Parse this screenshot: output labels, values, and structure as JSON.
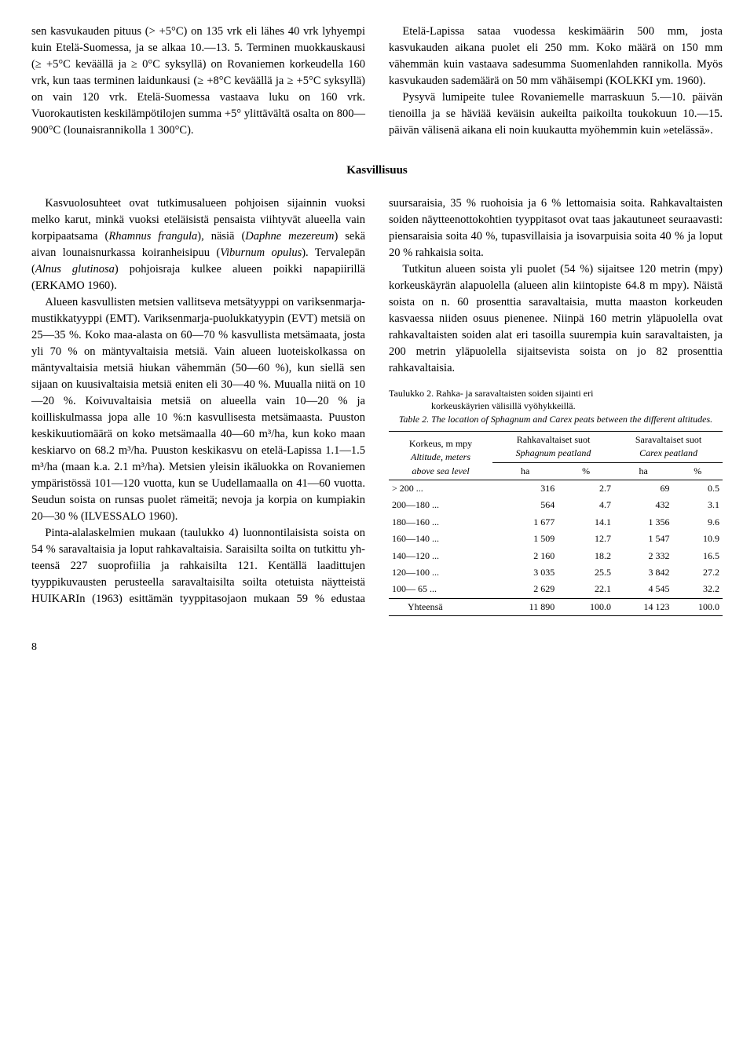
{
  "section1": {
    "col1_p1": "sen kasvukauden pituus (> +5°C) on 135 vrk eli lähes 40 vrk lyhyempi kuin Etelä-Suomessa, ja se alkaa 10.—13. 5. Terminen muokkauskausi (≥ +5°C keväällä ja ≥ 0°C syksyllä) on Rovaniemen korkeudella 160 vrk, kun taas terminen laidunkausi (≥ +8°C keväällä ja ≥ +5°C syksyllä) on vain 120 vrk. Etelä-Suomessa vastaava luku on 160 vrk. Vuorokautisten keskilämpötilojen summa +5° ylittävältä osalta on 800—900°C (lounaisrannikolla 1 300°C).",
    "col1_p2": "Etelä-Lapissa sataa vuodessa keskimäärin 500",
    "col2_p1": "mm, josta kasvukauden aikana puolet eli 250 mm. Koko määrä on 150 mm vähemmän kuin vastaava sadesumma Suomenlahden rannikolla. Myös kasvukauden sademäärä on 50 mm vähäisempi (KOLKKI ym. 1960).",
    "col2_p2": "Pysyvä lumipeite tulee Rovaniemelle marraskuun 5.—10. päivän tienoilla ja se häviää keväisin aukeilta paikoilta toukokuun 10.—15. päivän välisenä aikana eli noin kuukautta myöhemmin kuin »etelässä»."
  },
  "heading": "Kasvillisuus",
  "section2": {
    "p1a": "Kasvuolosuhteet ovat tutkimusalueen pohjoisen sijainnin vuoksi melko karut, minkä vuoksi eteläisistä pensaista viihtyvät alueella vain korpipaatsama (",
    "p1_i1": "Rhamnus frangula",
    "p1b": "), näsiä (",
    "p1_i2": "Daphne mezereum",
    "p1c": ") sekä aivan lounaisnurkassa koiranheisipuu (",
    "p1_i3": "Viburnum opulus",
    "p1d": "). Tervalepän (",
    "p1_i4": "Alnus glutinosa",
    "p1e": ") pohjoisraja kulkee alueen poikki napapiirillä (ERKAMO 1960).",
    "p2": "Alueen kasvullisten metsien vallitseva metsätyyppi on variksenmarja-mustikkatyyppi (EMT). Variksenmarja-puolukkatyypin (EVT) metsiä on 25—35 %. Koko maa-alasta on 60—70 % kasvullista metsämaata, josta yli 70 % on mäntyvaltaisia metsiä. Vain alueen luoteiskolkassa on mäntyvaltaisia metsiä hiukan vähemmän (50—60 %), kun siellä sen sijaan on kuusivaltaisia metsiä eniten eli 30—40 %. Muualla niitä on 10—20 %. Koivuvaltaisia metsiä on alueella vain 10—20 % ja koilliskulmassa jopa alle 10 %:n kasvullisesta metsämaasta. Puuston keskikuutiomäärä on koko metsämaalla 40—60 m³/ha, kun koko maan keskiarvo on 68.2 m³/ha. Puuston keskikasvu on etelä-Lapissa 1.1—1.5 m³/ha (maan k.a. 2.1 m³/ha). Metsien yleisin ikäluokka on Rovaniemen ympäristössä 101—120 vuotta, kun se Uudellamaalla on 41—60 vuotta. Seudun soista on runsas puolet rämeitä; nevoja ja korpia on kumpiakin 20—30 % (ILVESSALO 1960).",
    "p3": "Pinta-alalaskelmien mukaan (taulukko 4) luonnontilaisista soista on 54 % saravaltaisia ja loput rahkavaltaisia. Saraisilta soilta on tutkittu yh-",
    "p4": "teensä 227 suoprofiilia ja rahkaisilta 121. Kentällä laadittujen tyyppikuvausten perusteella saravaltaisilta soilta otetuista näytteistä HUIKARIn (1963) esittämän tyyppitasojaon mukaan 59 % edustaa suursaraisia, 35 % ruohoisia ja 6 % lettomaisia soita. Rahkavaltaisten soiden näytteenottokohtien tyyppitasot ovat taas jakautuneet seuraavasti: piensaraisia soita 40 %, tupasvillaisia ja isovarpuisia soita 40 % ja loput 20 % rahkaisia soita.",
    "p5": "Tutkitun alueen soista yli puolet (54 %) sijaitsee 120 metrin (mpy) korkeuskäyrän alapuolella (alueen alin kiintopiste 64.8 m mpy). Näistä soista on n. 60 prosenttia saravaltaisia, mutta maaston korkeuden kasvaessa niiden osuus pienenee. Niinpä 160 metrin yläpuolella ovat rahkavaltaisten soiden alat eri tasoilla suurempia kuin saravaltaisten, ja 200 metrin yläpuolella sijaitsevista soista on jo 82 prosenttia rahkavaltaisia."
  },
  "table": {
    "caption_fi_a": "Taulukko 2. Rahka- ja saravaltaisten soiden sijainti eri",
    "caption_fi_b": "korkeuskäyrien välisillä vyöhykkeillä.",
    "caption_en": "Table 2. The location of Sphagnum and Carex peats between the different altitudes.",
    "head_left_1": "Korkeus, m mpy",
    "head_left_2": "Altitude, meters",
    "head_left_3": "above sea level",
    "head_mid_1": "Rahkavaltaiset suot",
    "head_mid_2": "Sphagnum peatland",
    "head_right_1": "Saravaltaiset suot",
    "head_right_2": "Carex peatland",
    "unit_ha": "ha",
    "unit_pct": "%",
    "rows": [
      {
        "label": "> 200   ...",
        "a": "316",
        "b": "2.7",
        "c": "69",
        "d": "0.5"
      },
      {
        "label": "200—180 ...",
        "a": "564",
        "b": "4.7",
        "c": "432",
        "d": "3.1"
      },
      {
        "label": "180—160 ...",
        "a": "1 677",
        "b": "14.1",
        "c": "1 356",
        "d": "9.6"
      },
      {
        "label": "160—140 ...",
        "a": "1 509",
        "b": "12.7",
        "c": "1 547",
        "d": "10.9"
      },
      {
        "label": "140—120 ...",
        "a": "2 160",
        "b": "18.2",
        "c": "2 332",
        "d": "16.5"
      },
      {
        "label": "120—100 ...",
        "a": "3 035",
        "b": "25.5",
        "c": "3 842",
        "d": "27.2"
      },
      {
        "label": "100— 65 ...",
        "a": "2 629",
        "b": "22.1",
        "c": "4 545",
        "d": "32.2"
      }
    ],
    "total_label": "Yhteensä",
    "total_a": "11 890",
    "total_b": "100.0",
    "total_c": "14 123",
    "total_d": "100.0"
  },
  "pagenum": "8"
}
